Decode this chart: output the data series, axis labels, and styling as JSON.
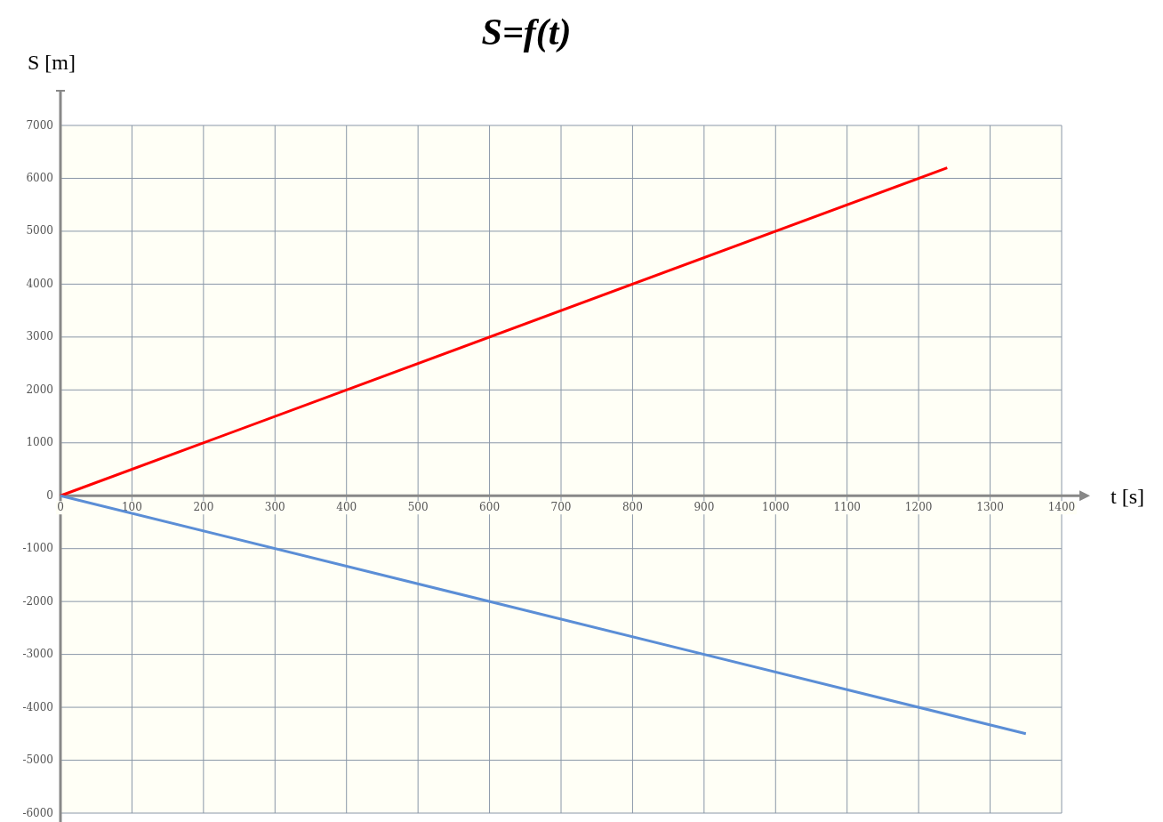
{
  "chart_data": {
    "type": "line",
    "title": "S=f(t)",
    "xlabel": "t [s]",
    "ylabel": "S [m]",
    "xlim": [
      0,
      1400
    ],
    "xticks": [
      0,
      100,
      200,
      300,
      400,
      500,
      600,
      700,
      800,
      900,
      1000,
      1100,
      1200,
      1300,
      1400
    ],
    "ylim": [
      -6000,
      7000
    ],
    "yticks": [
      -6000,
      -5000,
      -4000,
      -3000,
      -2000,
      -1000,
      0,
      1000,
      2000,
      3000,
      4000,
      5000,
      6000,
      7000
    ],
    "grid": true,
    "marker": "none",
    "line_style": "solid",
    "series": [
      {
        "color": "#ff0000",
        "x": [
          0,
          1240
        ],
        "values": [
          0,
          6200
        ]
      },
      {
        "color": "#5b8ed6",
        "x": [
          0,
          1350
        ],
        "values": [
          0,
          -4500
        ]
      }
    ]
  }
}
